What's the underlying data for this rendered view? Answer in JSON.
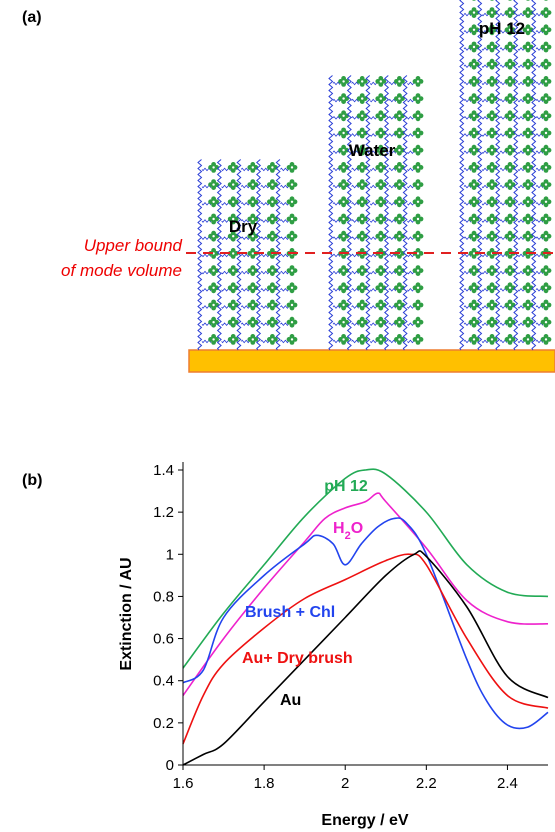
{
  "panel_a": {
    "label": "(a)",
    "annotation_line1": "Upper bound",
    "annotation_line2": "of mode volume",
    "annotation_color": "#ff0000",
    "substrate_color": "#ffc000",
    "chain_color": "#2a3ed6",
    "cluster_color": "#2f9e44",
    "columns": [
      {
        "name": "Dry",
        "rows": 11
      },
      {
        "name": "Water",
        "rows": 16
      },
      {
        "name": "pH 12",
        "rows": 24
      }
    ]
  },
  "chart_data": {
    "type": "line",
    "panel_label": "(b)",
    "xlabel": "Energy / eV",
    "ylabel": "Extinction / AU",
    "xlim": [
      1.6,
      2.5
    ],
    "ylim": [
      0,
      1.4
    ],
    "xticks": [
      "1.6",
      "1.8",
      "2",
      "2.2",
      "2.4"
    ],
    "yticks": [
      "0",
      "0.2",
      "0.4",
      "0.6",
      "0.8",
      "1",
      "1.2",
      "1.4"
    ],
    "series": [
      {
        "name": "pH 12",
        "color": "#22aa55",
        "x": [
          1.6,
          1.7,
          1.8,
          1.9,
          2.0,
          2.05,
          2.1,
          2.2,
          2.3,
          2.4,
          2.5
        ],
        "y": [
          0.46,
          0.72,
          0.95,
          1.18,
          1.36,
          1.4,
          1.38,
          1.2,
          0.95,
          0.82,
          0.8
        ]
      },
      {
        "name": "H2O",
        "name_main": "H",
        "name_sub": "2",
        "name_tail": "O",
        "color": "#ee22cc",
        "x": [
          1.6,
          1.7,
          1.8,
          1.9,
          1.95,
          2.0,
          2.05,
          2.08,
          2.1,
          2.2,
          2.3,
          2.4,
          2.5
        ],
        "y": [
          0.33,
          0.6,
          0.84,
          1.06,
          1.17,
          1.22,
          1.25,
          1.29,
          1.25,
          1.03,
          0.78,
          0.68,
          0.67
        ]
      },
      {
        "name": "Brush + Chl",
        "color": "#2244ee",
        "x": [
          1.6,
          1.65,
          1.7,
          1.8,
          1.9,
          1.93,
          1.97,
          2.0,
          2.04,
          2.08,
          2.12,
          2.15,
          2.2,
          2.3,
          2.35,
          2.4,
          2.45,
          2.5
        ],
        "y": [
          0.39,
          0.45,
          0.7,
          0.9,
          1.05,
          1.09,
          1.05,
          0.95,
          1.05,
          1.13,
          1.17,
          1.15,
          1.0,
          0.5,
          0.3,
          0.19,
          0.18,
          0.25
        ]
      },
      {
        "name": "Au+ Dry brush",
        "color": "#ee1111",
        "x": [
          1.6,
          1.65,
          1.7,
          1.8,
          1.9,
          2.0,
          2.1,
          2.16,
          2.2,
          2.3,
          2.4,
          2.5
        ],
        "y": [
          0.1,
          0.33,
          0.48,
          0.65,
          0.79,
          0.88,
          0.97,
          1.0,
          0.95,
          0.6,
          0.33,
          0.27
        ]
      },
      {
        "name": "Au",
        "color": "#000000",
        "x": [
          1.6,
          1.65,
          1.7,
          1.8,
          1.9,
          2.0,
          2.1,
          2.17,
          2.2,
          2.3,
          2.4,
          2.5
        ],
        "y": [
          0.0,
          0.05,
          0.1,
          0.3,
          0.5,
          0.7,
          0.9,
          1.0,
          0.99,
          0.75,
          0.42,
          0.32
        ]
      }
    ],
    "grid": false,
    "legend": "inline labels"
  }
}
